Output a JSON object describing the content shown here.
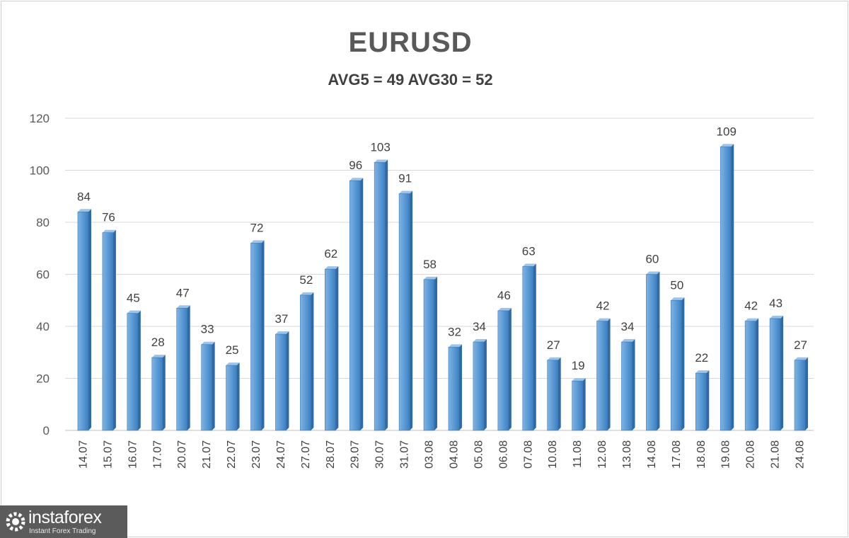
{
  "chart_data": {
    "type": "bar",
    "title": "EURUSD",
    "subtitle": "AVG5 = 49 AVG30 = 52",
    "xlabel": "",
    "ylabel": "",
    "ylim": [
      0,
      120
    ],
    "yticks": [
      0,
      20,
      40,
      60,
      80,
      100,
      120
    ],
    "grid": true,
    "categories": [
      "14.07",
      "15.07",
      "16.07",
      "17.07",
      "20.07",
      "21.07",
      "22.07",
      "23.07",
      "24.07",
      "27.07",
      "28.07",
      "29.07",
      "30.07",
      "31.07",
      "03.08",
      "04.08",
      "05.08",
      "06.08",
      "07.08",
      "10.08",
      "11.08",
      "12.08",
      "13.08",
      "14.08",
      "17.08",
      "18.08",
      "19.08",
      "20.08",
      "21.08",
      "24.08"
    ],
    "values": [
      84,
      76,
      45,
      28,
      47,
      33,
      25,
      72,
      37,
      52,
      62,
      96,
      103,
      91,
      58,
      32,
      34,
      46,
      63,
      27,
      19,
      42,
      34,
      60,
      50,
      22,
      109,
      42,
      43,
      27
    ],
    "bar_color": "#5b9bd5"
  },
  "logo": {
    "name": "instaforex",
    "tagline": "Instant Forex Trading"
  }
}
